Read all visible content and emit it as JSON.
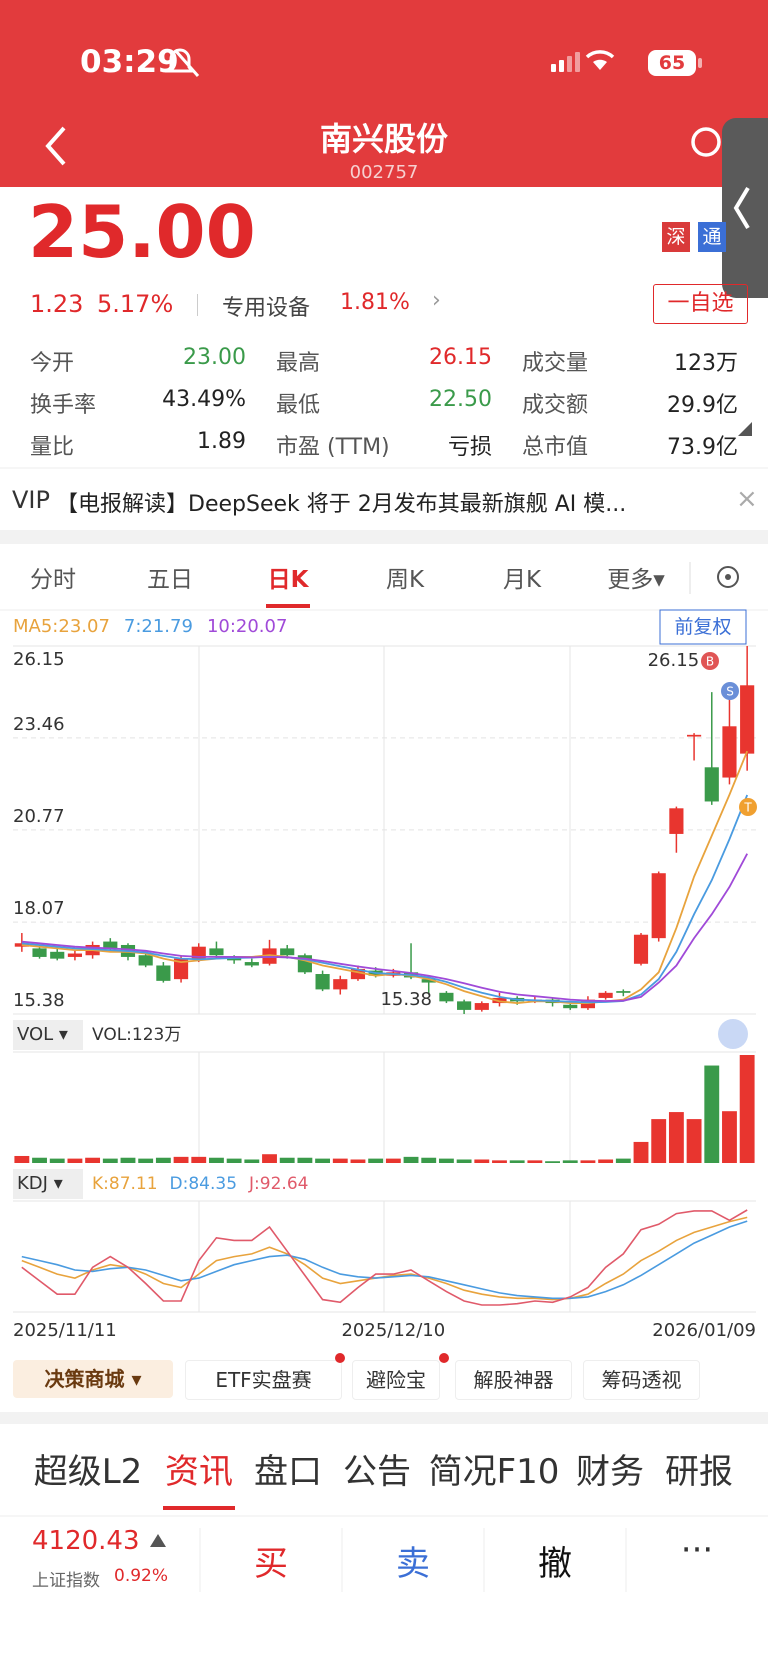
{
  "status_bar": {
    "time": "03:29",
    "battery": "65"
  },
  "header": {
    "title": "南兴股份",
    "code": "002757"
  },
  "quote": {
    "price": "25.00",
    "change": "1.23",
    "change_pct": "5.17%",
    "sector": "专用设备",
    "sector_pct": "1.81%",
    "badges": [
      "深",
      "通"
    ],
    "watchlist": "一自选"
  },
  "stats": {
    "rows": [
      [
        {
          "label": "今开",
          "value": "23.00",
          "color": "#3a9a4a"
        },
        {
          "label": "最高",
          "value": "26.15",
          "color": "#e0292b"
        },
        {
          "label": "成交量",
          "value": "123万",
          "color": "#222"
        }
      ],
      [
        {
          "label": "换手率",
          "value": "43.49%",
          "color": "#222"
        },
        {
          "label": "最低",
          "value": "22.50",
          "color": "#3a9a4a"
        },
        {
          "label": "成交额",
          "value": "29.9亿",
          "color": "#222"
        }
      ],
      [
        {
          "label": "量比",
          "value": "1.89",
          "color": "#222"
        },
        {
          "label": "市盈 (TTM)",
          "value": "亏损",
          "color": "#222"
        },
        {
          "label": "总市值",
          "value": "73.9亿",
          "color": "#222"
        }
      ]
    ]
  },
  "news": {
    "prefix": "VIP",
    "text": "【电报解读】DeepSeek 将于 2月发布其最新旗舰 AI 模..."
  },
  "tabs": [
    "分时",
    "五日",
    "日K",
    "周K",
    "月K",
    "更多▾"
  ],
  "active_tab": "日K",
  "chart_data": {
    "type": "candlestick",
    "adjust": "前复权",
    "up_color": "#e8352f",
    "down_color": "#3a9a4a",
    "ylim": [
      15.38,
      26.15
    ],
    "yticks": [
      26.15,
      23.46,
      20.77,
      18.07,
      15.38
    ],
    "categories": [
      "2025/11/11",
      null,
      null,
      null,
      null,
      null,
      null,
      null,
      null,
      null,
      null,
      null,
      null,
      null,
      null,
      null,
      null,
      null,
      null,
      null,
      null,
      "2025/12/10",
      null,
      null,
      null,
      null,
      null,
      null,
      null,
      null,
      null,
      null,
      null,
      null,
      null,
      null,
      null,
      null,
      null,
      null,
      null,
      "2026/01/09"
    ],
    "open": [
      17.35,
      17.3,
      17.2,
      17.05,
      17.1,
      17.5,
      17.4,
      17.1,
      16.8,
      16.4,
      17.0,
      17.3,
      17.05,
      16.9,
      16.85,
      17.3,
      17.1,
      16.55,
      16.1,
      16.4,
      16.65,
      16.5,
      16.6,
      16.4,
      16.0,
      15.75,
      15.5,
      15.7,
      15.85,
      15.75,
      15.8,
      15.65,
      15.55,
      15.85,
      16.05,
      16.85,
      17.6,
      20.65,
      23.5,
      22.6,
      22.3,
      23.0
    ],
    "close": [
      17.45,
      17.05,
      17.0,
      17.15,
      17.4,
      17.3,
      17.05,
      16.8,
      16.35,
      17.0,
      17.35,
      17.1,
      16.95,
      16.8,
      17.3,
      17.1,
      16.6,
      16.1,
      16.4,
      16.7,
      16.5,
      16.6,
      16.45,
      16.3,
      15.75,
      15.5,
      15.7,
      15.85,
      15.75,
      15.8,
      15.7,
      15.55,
      15.8,
      16.0,
      16.0,
      17.7,
      19.5,
      21.4,
      23.55,
      21.6,
      23.8,
      25.0
    ],
    "high": [
      17.75,
      17.4,
      17.3,
      17.25,
      17.5,
      17.6,
      17.45,
      17.2,
      16.9,
      17.1,
      17.45,
      17.5,
      17.1,
      17.0,
      17.55,
      17.4,
      17.15,
      16.65,
      16.5,
      16.8,
      16.75,
      16.7,
      17.45,
      16.5,
      16.05,
      15.8,
      15.75,
      16.0,
      15.9,
      15.9,
      15.85,
      15.75,
      15.9,
      16.05,
      16.1,
      17.75,
      19.55,
      21.45,
      23.6,
      24.8,
      24.75,
      26.15
    ],
    "low": [
      17.2,
      17.0,
      16.95,
      16.95,
      17.0,
      17.25,
      16.95,
      16.75,
      16.3,
      16.3,
      16.9,
      17.0,
      16.85,
      16.75,
      16.8,
      17.0,
      16.55,
      16.05,
      15.95,
      16.35,
      16.45,
      16.45,
      16.4,
      15.95,
      15.7,
      15.38,
      15.45,
      15.6,
      15.65,
      15.7,
      15.6,
      15.5,
      15.5,
      15.8,
      15.9,
      16.8,
      17.5,
      20.1,
      22.8,
      21.5,
      22.1,
      22.5
    ],
    "series": [
      {
        "name": "MA5:23.07",
        "color": "#e8a33d",
        "values": [
          17.4,
          17.35,
          17.3,
          17.25,
          17.25,
          17.2,
          17.2,
          17.15,
          17.0,
          16.9,
          16.95,
          17.0,
          17.05,
          17.05,
          17.1,
          17.05,
          16.95,
          16.8,
          16.7,
          16.6,
          16.5,
          16.55,
          16.5,
          16.4,
          16.25,
          16.05,
          15.9,
          15.75,
          15.7,
          15.75,
          15.75,
          15.7,
          15.7,
          15.75,
          15.8,
          16.1,
          16.6,
          17.9,
          19.4,
          20.6,
          21.8,
          23.07
        ]
      },
      {
        "name": "7:21.79",
        "color": "#4a9be0",
        "values": [
          17.45,
          17.4,
          17.35,
          17.3,
          17.28,
          17.25,
          17.22,
          17.18,
          17.08,
          17.0,
          16.98,
          17.0,
          17.02,
          17.03,
          17.05,
          17.04,
          16.98,
          16.88,
          16.78,
          16.68,
          16.58,
          16.55,
          16.52,
          16.45,
          16.32,
          16.15,
          16.0,
          15.88,
          15.8,
          15.78,
          15.76,
          15.74,
          15.72,
          15.73,
          15.76,
          15.95,
          16.4,
          17.2,
          18.3,
          19.3,
          20.5,
          21.79
        ]
      },
      {
        "name": "10:20.07",
        "color": "#a04ad8",
        "values": [
          17.5,
          17.45,
          17.4,
          17.35,
          17.32,
          17.3,
          17.27,
          17.23,
          17.15,
          17.08,
          17.05,
          17.05,
          17.05,
          17.04,
          17.05,
          17.04,
          17.0,
          16.93,
          16.85,
          16.77,
          16.7,
          16.64,
          16.58,
          16.5,
          16.4,
          16.28,
          16.15,
          16.03,
          15.95,
          15.9,
          15.85,
          15.8,
          15.77,
          15.76,
          15.77,
          15.88,
          16.3,
          16.8,
          17.6,
          18.3,
          19.1,
          20.07
        ]
      }
    ],
    "annotations": {
      "high": 26.15,
      "low": 15.38,
      "markers": [
        "B",
        "S",
        "T"
      ]
    },
    "volume": {
      "label": "VOL ▾",
      "summary": "VOL:123万",
      "values": [
        8,
        6,
        5,
        5,
        6,
        5,
        6,
        5,
        6,
        7,
        7,
        6,
        5,
        4,
        10,
        6,
        6,
        5,
        5,
        4,
        5,
        5,
        7,
        6,
        5,
        4,
        4,
        3,
        3,
        3,
        2,
        3,
        3,
        4,
        5,
        24,
        50,
        58,
        50,
        111,
        59,
        123
      ]
    },
    "kdj": {
      "label": "KDJ ▾",
      "series": [
        {
          "name": "K:87.11",
          "color": "#e8a33d",
          "values": [
            55,
            50,
            45,
            42,
            48,
            52,
            50,
            45,
            38,
            35,
            45,
            55,
            58,
            60,
            65,
            60,
            52,
            42,
            38,
            40,
            42,
            44,
            45,
            42,
            38,
            33,
            30,
            28,
            27,
            27,
            26,
            27,
            30,
            38,
            45,
            55,
            62,
            70,
            76,
            80,
            84,
            87.11
          ]
        },
        {
          "name": "D:84.35",
          "color": "#4a9be0",
          "values": [
            58,
            55,
            52,
            48,
            47,
            49,
            50,
            48,
            44,
            40,
            42,
            47,
            52,
            55,
            58,
            59,
            56,
            50,
            45,
            43,
            42,
            43,
            44,
            43,
            40,
            37,
            34,
            31,
            29,
            28,
            27,
            27,
            28,
            32,
            37,
            44,
            52,
            60,
            68,
            74,
            80,
            84.35
          ]
        },
        {
          "name": "J:92.64",
          "color": "#e05a6a",
          "values": [
            50,
            40,
            30,
            30,
            50,
            58,
            50,
            38,
            25,
            25,
            55,
            72,
            70,
            70,
            80,
            62,
            44,
            26,
            24,
            35,
            45,
            45,
            48,
            40,
            32,
            25,
            22,
            22,
            23,
            25,
            24,
            28,
            35,
            50,
            60,
            78,
            82,
            90,
            92,
            92,
            85,
            92.64
          ]
        }
      ]
    }
  },
  "tool_chips": [
    "决策商城 ▾",
    "ETF实盘赛",
    "避险宝",
    "解股神器",
    "筹码透视"
  ],
  "bottom_tabs": [
    "超级L2",
    "资讯",
    "盘口",
    "公告",
    "简况F10",
    "财务",
    "研报"
  ],
  "active_bottom_tab": "资讯",
  "footer": {
    "index_value": "4120.43",
    "index_name": "上证指数",
    "index_pct": "0.92%",
    "actions": [
      "买",
      "卖",
      "撤"
    ]
  }
}
